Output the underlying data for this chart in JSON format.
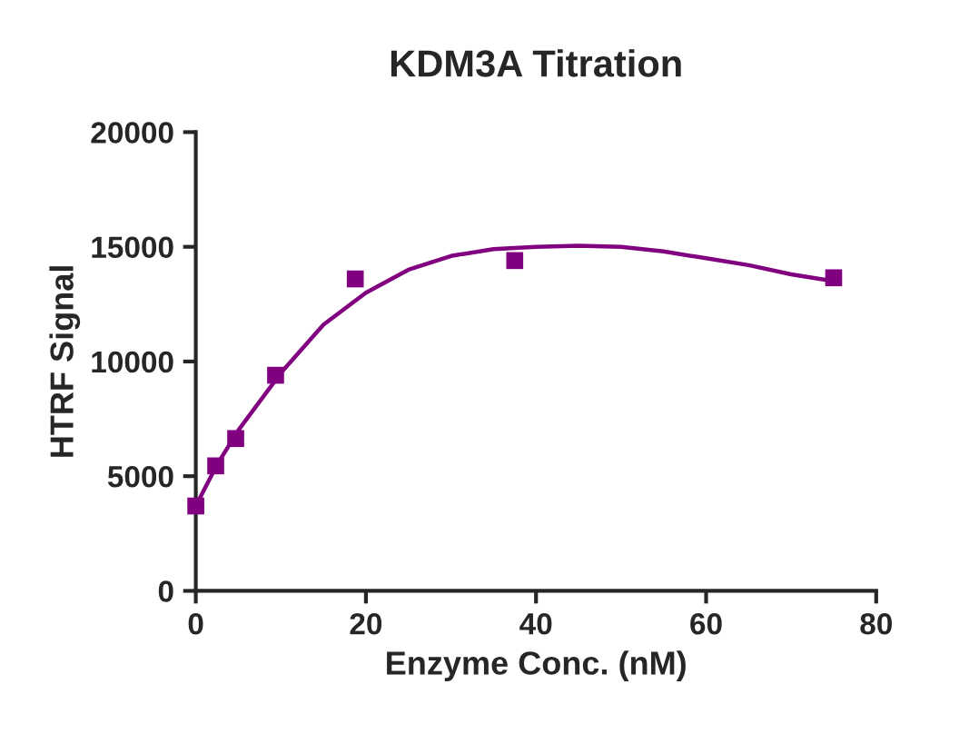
{
  "chart_data": {
    "type": "scatter",
    "title": "KDM3A Titration",
    "xlabel": "Enzyme Conc. (nM)",
    "ylabel": "HTRF Signal",
    "xlim": [
      0,
      80
    ],
    "xticks": [
      0,
      20,
      40,
      60,
      80
    ],
    "ylim": [
      0,
      20000
    ],
    "yticks": [
      0,
      5000,
      10000,
      15000,
      20000
    ],
    "grid": false,
    "legend": false,
    "series": [
      {
        "marker": "square",
        "color": "#800080",
        "x": [
          0,
          2.34,
          4.69,
          9.38,
          18.75,
          37.5,
          75
        ],
        "values": [
          3700,
          5450,
          6640,
          9400,
          13600,
          14400,
          13650
        ]
      },
      {
        "type": "line",
        "marker": "none",
        "line_style": "solid",
        "color": "#800080",
        "x": [
          0,
          2.5,
          5,
          10,
          15,
          20,
          25,
          30,
          35,
          40,
          45,
          50,
          55,
          60,
          65,
          70,
          75
        ],
        "values": [
          3700,
          5500,
          7000,
          9500,
          11600,
          13000,
          14000,
          14600,
          14900,
          15000,
          15050,
          15000,
          14800,
          14500,
          14200,
          13800,
          13500
        ]
      }
    ]
  }
}
